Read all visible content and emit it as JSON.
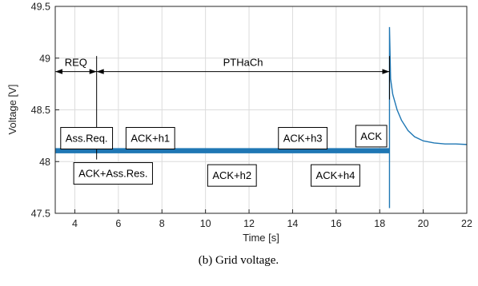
{
  "chart_data": {
    "type": "line",
    "xlabel": "Time [s]",
    "ylabel": "Voltage [V]",
    "xlim": [
      3.1,
      22
    ],
    "ylim": [
      47.5,
      49.5
    ],
    "x_ticks": [
      4,
      6,
      8,
      10,
      12,
      14,
      16,
      18,
      20,
      22
    ],
    "y_ticks": [
      47.5,
      48,
      48.5,
      49,
      49.5
    ],
    "x_tick_labels": [
      "4",
      "6",
      "8",
      "10",
      "12",
      "14",
      "16",
      "18",
      "20",
      "22"
    ],
    "y_tick_labels": [
      "47.5",
      "48",
      "48.5",
      "49",
      "49.5"
    ],
    "grid": true,
    "series_color": "#1f77b4",
    "band": {
      "x": [
        3.1,
        18.45
      ],
      "y_low": 48.08,
      "y_high": 48.13
    },
    "transient": {
      "x": [
        18.45,
        18.45,
        18.45,
        18.5,
        18.6,
        18.8,
        19.0,
        19.3,
        19.6,
        20.0,
        20.5,
        21.0,
        21.5,
        22.0
      ],
      "y": [
        48.1,
        47.55,
        49.3,
        48.8,
        48.65,
        48.5,
        48.4,
        48.3,
        48.24,
        48.2,
        48.18,
        48.17,
        48.17,
        48.165
      ]
    },
    "markers": [
      {
        "name": "REQ-end",
        "x": 5.0,
        "y_top": 49.02,
        "y_bottom": 48.02
      },
      {
        "name": "PTHaCh-end",
        "x": 18.45,
        "y_top": 49.02,
        "y_bottom": 48.6
      }
    ],
    "spans": [
      {
        "label": "REQ",
        "x_from": 3.1,
        "x_to": 5.0,
        "y": 48.87
      },
      {
        "label": "PTHaCh",
        "x_from": 5.0,
        "x_to": 18.45,
        "y": 48.87
      }
    ],
    "annotations": [
      {
        "label": "Ass.Req.",
        "x": 3.35,
        "y": 48.33
      },
      {
        "label": "ACK+h1",
        "x": 6.35,
        "y": 48.33
      },
      {
        "label": "ACK+h3",
        "x": 13.35,
        "y": 48.33
      },
      {
        "label": "ACK",
        "x": 16.9,
        "y": 48.35
      },
      {
        "label": "ACK+Ass.Res.",
        "x": 3.95,
        "y": 47.99
      },
      {
        "label": "ACK+h2",
        "x": 10.1,
        "y": 47.97
      },
      {
        "label": "ACK+h4",
        "x": 14.85,
        "y": 47.97
      }
    ]
  },
  "caption": "(b) Grid voltage."
}
